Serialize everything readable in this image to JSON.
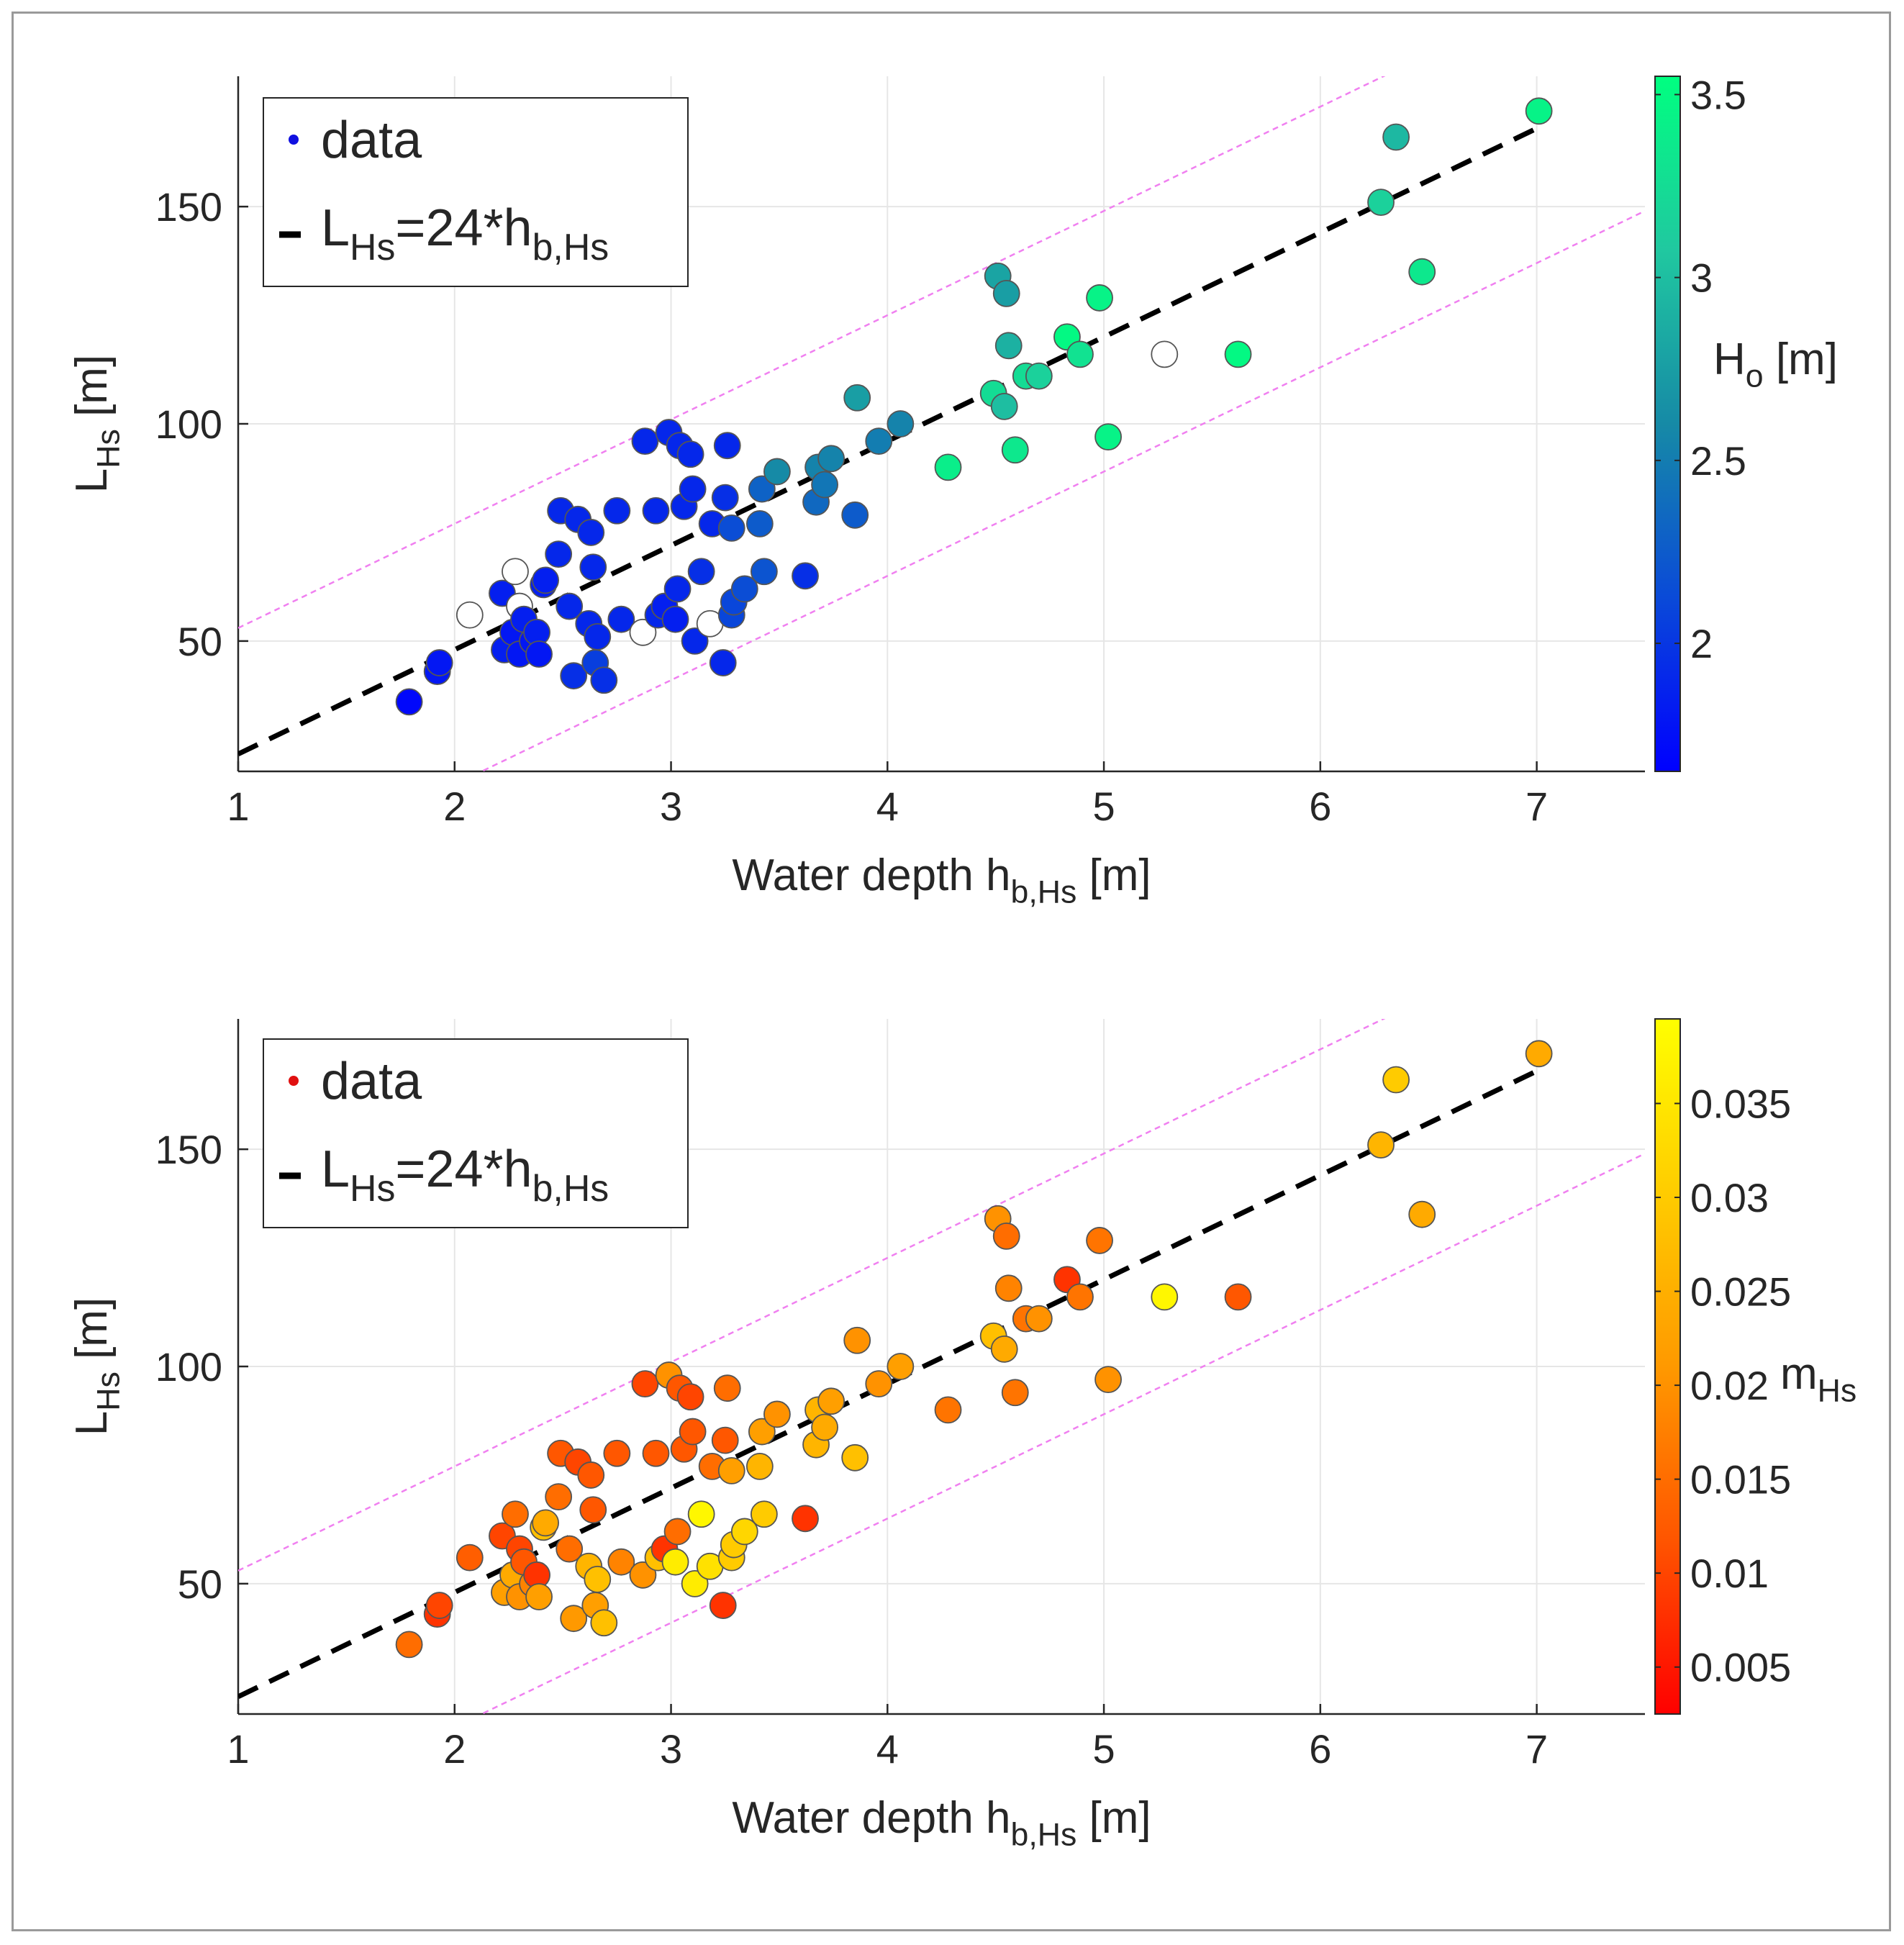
{
  "chart_data": [
    {
      "type": "scatter",
      "xlabel": {
        "main": "Water depth h",
        "sub": "b,Hs",
        "unit": " [m]"
      },
      "ylabel": {
        "main": "L",
        "sub": "Hs",
        "unit": " [m]"
      },
      "xlim": [
        1,
        7.5
      ],
      "ylim": [
        20,
        180
      ],
      "xticks": [
        1,
        2,
        3,
        4,
        5,
        6,
        7
      ],
      "yticks": [
        50,
        100,
        150
      ],
      "grid": true,
      "legend": {
        "placement": "top-left",
        "entries": [
          {
            "label": "data",
            "marker": "dot",
            "color": "#1010e0"
          },
          {
            "label": {
              "main": "L",
              "sub": "Hs",
              "eq": "=24*h",
              "sub2": "b,Hs"
            },
            "marker": "dash",
            "color": "#000000"
          }
        ]
      },
      "fit_line": {
        "slope": 24,
        "intercept": 0,
        "x": [
          1,
          7
        ],
        "color": "#000000",
        "style": "dashed"
      },
      "bound_lines": {
        "slope": 24,
        "offsets": [
          29,
          -31
        ],
        "color": "#f080f0",
        "style": "dotted"
      },
      "colorbar": {
        "label": {
          "main": "H",
          "sub": "o",
          "unit": " [m]"
        },
        "range": [
          1.65,
          3.55
        ],
        "ticks": [
          2,
          2.5,
          3,
          3.5
        ],
        "colormap": [
          "#0000ff",
          "#0a4ad8",
          "#168aa6",
          "#20c8a0",
          "#00ff80"
        ]
      },
      "points": [
        {
          "x": 1.79,
          "y": 36,
          "c": 1.7
        },
        {
          "x": 1.92,
          "y": 43,
          "c": 1.8
        },
        {
          "x": 1.93,
          "y": 45,
          "c": 1.8
        },
        {
          "x": 2.07,
          "y": 56,
          "c": null
        },
        {
          "x": 2.22,
          "y": 61,
          "c": 1.85
        },
        {
          "x": 2.23,
          "y": 48,
          "c": 1.85
        },
        {
          "x": 2.27,
          "y": 52,
          "c": 1.8
        },
        {
          "x": 2.28,
          "y": 66,
          "c": null
        },
        {
          "x": 2.3,
          "y": 58,
          "c": null
        },
        {
          "x": 2.3,
          "y": 47,
          "c": 1.8
        },
        {
          "x": 2.32,
          "y": 55,
          "c": 1.85
        },
        {
          "x": 2.36,
          "y": 50,
          "c": 1.8
        },
        {
          "x": 2.38,
          "y": 52,
          "c": 1.85
        },
        {
          "x": 2.39,
          "y": 47,
          "c": 1.8
        },
        {
          "x": 2.41,
          "y": 63,
          "c": 1.85
        },
        {
          "x": 2.42,
          "y": 64,
          "c": 1.85
        },
        {
          "x": 2.48,
          "y": 70,
          "c": 1.9
        },
        {
          "x": 2.49,
          "y": 80,
          "c": 1.9
        },
        {
          "x": 2.53,
          "y": 58,
          "c": 1.9
        },
        {
          "x": 2.55,
          "y": 42,
          "c": 1.95
        },
        {
          "x": 2.57,
          "y": 78,
          "c": 1.9
        },
        {
          "x": 2.62,
          "y": 54,
          "c": 1.9
        },
        {
          "x": 2.63,
          "y": 75,
          "c": 1.9
        },
        {
          "x": 2.64,
          "y": 67,
          "c": 1.9
        },
        {
          "x": 2.65,
          "y": 45,
          "c": 2.05
        },
        {
          "x": 2.66,
          "y": 51,
          "c": 1.9
        },
        {
          "x": 2.69,
          "y": 41,
          "c": 1.95
        },
        {
          "x": 2.75,
          "y": 80,
          "c": 1.9
        },
        {
          "x": 2.77,
          "y": 55,
          "c": 1.9
        },
        {
          "x": 2.87,
          "y": 52,
          "c": null
        },
        {
          "x": 2.88,
          "y": 96,
          "c": 1.9
        },
        {
          "x": 2.93,
          "y": 80,
          "c": 1.9
        },
        {
          "x": 2.94,
          "y": 56,
          "c": 1.9
        },
        {
          "x": 2.97,
          "y": 58,
          "c": 1.85
        },
        {
          "x": 2.99,
          "y": 98,
          "c": 1.9
        },
        {
          "x": 3.02,
          "y": 55,
          "c": 1.85
        },
        {
          "x": 3.03,
          "y": 62,
          "c": 1.9
        },
        {
          "x": 3.04,
          "y": 95,
          "c": 1.9
        },
        {
          "x": 3.06,
          "y": 81,
          "c": 1.9
        },
        {
          "x": 3.09,
          "y": 93,
          "c": 1.9
        },
        {
          "x": 3.1,
          "y": 85,
          "c": 1.9
        },
        {
          "x": 3.11,
          "y": 50,
          "c": 1.9
        },
        {
          "x": 3.14,
          "y": 66,
          "c": 1.95
        },
        {
          "x": 3.18,
          "y": 54,
          "c": null
        },
        {
          "x": 3.19,
          "y": 77,
          "c": 1.9
        },
        {
          "x": 3.24,
          "y": 45,
          "c": 1.9
        },
        {
          "x": 3.25,
          "y": 83,
          "c": 1.95
        },
        {
          "x": 3.26,
          "y": 95,
          "c": 1.9
        },
        {
          "x": 3.28,
          "y": 76,
          "c": 2.15
        },
        {
          "x": 3.28,
          "y": 56,
          "c": 2.1
        },
        {
          "x": 3.29,
          "y": 59,
          "c": 2.1
        },
        {
          "x": 3.34,
          "y": 62,
          "c": 2.15
        },
        {
          "x": 3.41,
          "y": 77,
          "c": 2.25
        },
        {
          "x": 3.42,
          "y": 85,
          "c": 2.3
        },
        {
          "x": 3.43,
          "y": 66,
          "c": 2.2
        },
        {
          "x": 3.49,
          "y": 89,
          "c": 2.6
        },
        {
          "x": 3.62,
          "y": 65,
          "c": 1.95
        },
        {
          "x": 3.67,
          "y": 82,
          "c": 2.35
        },
        {
          "x": 3.68,
          "y": 90,
          "c": 2.55
        },
        {
          "x": 3.71,
          "y": 86,
          "c": 2.45
        },
        {
          "x": 3.74,
          "y": 92,
          "c": 2.55
        },
        {
          "x": 3.85,
          "y": 79,
          "c": 2.25
        },
        {
          "x": 3.86,
          "y": 106,
          "c": 2.75
        },
        {
          "x": 3.96,
          "y": 96,
          "c": 2.5
        },
        {
          "x": 4.06,
          "y": 100,
          "c": 2.55
        },
        {
          "x": 4.28,
          "y": 90,
          "c": 3.4
        },
        {
          "x": 4.49,
          "y": 107,
          "c": 3.25
        },
        {
          "x": 4.51,
          "y": 134,
          "c": 2.8
        },
        {
          "x": 4.54,
          "y": 104,
          "c": 3.0
        },
        {
          "x": 4.55,
          "y": 130,
          "c": 2.75
        },
        {
          "x": 4.56,
          "y": 118,
          "c": 2.9
        },
        {
          "x": 4.59,
          "y": 94,
          "c": 3.35
        },
        {
          "x": 4.64,
          "y": 111,
          "c": 3.25
        },
        {
          "x": 4.7,
          "y": 111,
          "c": 3.15
        },
        {
          "x": 4.83,
          "y": 120,
          "c": 3.5
        },
        {
          "x": 4.89,
          "y": 116,
          "c": 3.3
        },
        {
          "x": 4.98,
          "y": 129,
          "c": 3.45
        },
        {
          "x": 5.02,
          "y": 97,
          "c": 3.45
        },
        {
          "x": 5.28,
          "y": 116,
          "c": null
        },
        {
          "x": 5.62,
          "y": 116,
          "c": 3.5
        },
        {
          "x": 6.28,
          "y": 151,
          "c": 3.15
        },
        {
          "x": 6.35,
          "y": 166,
          "c": 2.95
        },
        {
          "x": 6.47,
          "y": 135,
          "c": 3.35
        },
        {
          "x": 7.01,
          "y": 172,
          "c": 3.45
        }
      ]
    },
    {
      "type": "scatter",
      "xlabel": {
        "main": "Water depth h",
        "sub": "b,Hs",
        "unit": " [m]"
      },
      "ylabel": {
        "main": "L",
        "sub": "Hs",
        "unit": " [m]"
      },
      "xlim": [
        1,
        7.5
      ],
      "ylim": [
        20,
        180
      ],
      "xticks": [
        1,
        2,
        3,
        4,
        5,
        6,
        7
      ],
      "yticks": [
        50,
        100,
        150
      ],
      "grid": true,
      "legend": {
        "placement": "top-left",
        "entries": [
          {
            "label": "data",
            "marker": "dot",
            "color": "#e01010"
          },
          {
            "label": {
              "main": "L",
              "sub": "Hs",
              "eq": "=24*h",
              "sub2": "b,Hs"
            },
            "marker": "dash",
            "color": "#000000"
          }
        ]
      },
      "fit_line": {
        "slope": 24,
        "intercept": 0,
        "x": [
          1,
          7
        ],
        "color": "#000000",
        "style": "dashed"
      },
      "bound_lines": {
        "slope": 24,
        "offsets": [
          29,
          -31
        ],
        "color": "#f080f0",
        "style": "dotted"
      },
      "colorbar": {
        "label": {
          "main": "m",
          "sub": "Hs",
          "unit": ""
        },
        "range": [
          0.0025,
          0.0395
        ],
        "ticks": [
          0.005,
          0.01,
          0.015,
          0.02,
          0.025,
          0.03,
          0.035
        ],
        "colormap": [
          "#ff0000",
          "#ff5500",
          "#ff9900",
          "#ffcc00",
          "#ffff00"
        ]
      },
      "points": [
        {
          "x": 1.79,
          "y": 36,
          "c": 0.015
        },
        {
          "x": 1.92,
          "y": 43,
          "c": 0.008
        },
        {
          "x": 1.93,
          "y": 45,
          "c": 0.01
        },
        {
          "x": 2.07,
          "y": 56,
          "c": 0.013
        },
        {
          "x": 2.22,
          "y": 61,
          "c": 0.01
        },
        {
          "x": 2.23,
          "y": 48,
          "c": 0.022
        },
        {
          "x": 2.27,
          "y": 52,
          "c": 0.024
        },
        {
          "x": 2.28,
          "y": 66,
          "c": 0.015
        },
        {
          "x": 2.3,
          "y": 58,
          "c": 0.01
        },
        {
          "x": 2.3,
          "y": 47,
          "c": 0.02
        },
        {
          "x": 2.32,
          "y": 55,
          "c": 0.012
        },
        {
          "x": 2.36,
          "y": 50,
          "c": 0.018
        },
        {
          "x": 2.38,
          "y": 52,
          "c": 0.008
        },
        {
          "x": 2.39,
          "y": 47,
          "c": 0.022
        },
        {
          "x": 2.41,
          "y": 63,
          "c": 0.028
        },
        {
          "x": 2.42,
          "y": 64,
          "c": 0.024
        },
        {
          "x": 2.48,
          "y": 70,
          "c": 0.015
        },
        {
          "x": 2.49,
          "y": 80,
          "c": 0.012
        },
        {
          "x": 2.53,
          "y": 58,
          "c": 0.015
        },
        {
          "x": 2.55,
          "y": 42,
          "c": 0.021
        },
        {
          "x": 2.57,
          "y": 78,
          "c": 0.01
        },
        {
          "x": 2.62,
          "y": 54,
          "c": 0.026
        },
        {
          "x": 2.63,
          "y": 75,
          "c": 0.012
        },
        {
          "x": 2.64,
          "y": 67,
          "c": 0.012
        },
        {
          "x": 2.65,
          "y": 45,
          "c": 0.022
        },
        {
          "x": 2.66,
          "y": 51,
          "c": 0.028
        },
        {
          "x": 2.69,
          "y": 41,
          "c": 0.028
        },
        {
          "x": 2.75,
          "y": 80,
          "c": 0.012
        },
        {
          "x": 2.77,
          "y": 55,
          "c": 0.018
        },
        {
          "x": 2.87,
          "y": 52,
          "c": 0.02
        },
        {
          "x": 2.88,
          "y": 96,
          "c": 0.01
        },
        {
          "x": 2.93,
          "y": 80,
          "c": 0.012
        },
        {
          "x": 2.94,
          "y": 56,
          "c": 0.028
        },
        {
          "x": 2.97,
          "y": 58,
          "c": 0.008
        },
        {
          "x": 2.99,
          "y": 98,
          "c": 0.02
        },
        {
          "x": 3.02,
          "y": 55,
          "c": 0.036
        },
        {
          "x": 3.03,
          "y": 62,
          "c": 0.015
        },
        {
          "x": 3.04,
          "y": 95,
          "c": 0.012
        },
        {
          "x": 3.06,
          "y": 81,
          "c": 0.012
        },
        {
          "x": 3.09,
          "y": 93,
          "c": 0.01
        },
        {
          "x": 3.1,
          "y": 85,
          "c": 0.012
        },
        {
          "x": 3.11,
          "y": 50,
          "c": 0.036
        },
        {
          "x": 3.14,
          "y": 66,
          "c": 0.038
        },
        {
          "x": 3.18,
          "y": 54,
          "c": 0.034
        },
        {
          "x": 3.19,
          "y": 77,
          "c": 0.015
        },
        {
          "x": 3.24,
          "y": 45,
          "c": 0.008
        },
        {
          "x": 3.25,
          "y": 83,
          "c": 0.012
        },
        {
          "x": 3.26,
          "y": 95,
          "c": 0.015
        },
        {
          "x": 3.28,
          "y": 76,
          "c": 0.022
        },
        {
          "x": 3.28,
          "y": 56,
          "c": 0.03
        },
        {
          "x": 3.29,
          "y": 59,
          "c": 0.03
        },
        {
          "x": 3.34,
          "y": 62,
          "c": 0.032
        },
        {
          "x": 3.41,
          "y": 77,
          "c": 0.026
        },
        {
          "x": 3.42,
          "y": 85,
          "c": 0.022
        },
        {
          "x": 3.43,
          "y": 66,
          "c": 0.03
        },
        {
          "x": 3.49,
          "y": 89,
          "c": 0.02
        },
        {
          "x": 3.62,
          "y": 65,
          "c": 0.008
        },
        {
          "x": 3.67,
          "y": 82,
          "c": 0.026
        },
        {
          "x": 3.68,
          "y": 90,
          "c": 0.026
        },
        {
          "x": 3.71,
          "y": 86,
          "c": 0.024
        },
        {
          "x": 3.74,
          "y": 92,
          "c": 0.022
        },
        {
          "x": 3.85,
          "y": 79,
          "c": 0.028
        },
        {
          "x": 3.86,
          "y": 106,
          "c": 0.02
        },
        {
          "x": 3.96,
          "y": 96,
          "c": 0.02
        },
        {
          "x": 4.06,
          "y": 100,
          "c": 0.022
        },
        {
          "x": 4.28,
          "y": 90,
          "c": 0.016
        },
        {
          "x": 4.49,
          "y": 107,
          "c": 0.028
        },
        {
          "x": 4.51,
          "y": 134,
          "c": 0.02
        },
        {
          "x": 4.54,
          "y": 104,
          "c": 0.024
        },
        {
          "x": 4.55,
          "y": 130,
          "c": 0.015
        },
        {
          "x": 4.56,
          "y": 118,
          "c": 0.018
        },
        {
          "x": 4.59,
          "y": 94,
          "c": 0.016
        },
        {
          "x": 4.64,
          "y": 111,
          "c": 0.016
        },
        {
          "x": 4.7,
          "y": 111,
          "c": 0.02
        },
        {
          "x": 4.83,
          "y": 120,
          "c": 0.008
        },
        {
          "x": 4.89,
          "y": 116,
          "c": 0.016
        },
        {
          "x": 4.98,
          "y": 129,
          "c": 0.016
        },
        {
          "x": 5.02,
          "y": 97,
          "c": 0.02
        },
        {
          "x": 5.28,
          "y": 116,
          "c": 0.038
        },
        {
          "x": 5.62,
          "y": 116,
          "c": 0.012
        },
        {
          "x": 6.28,
          "y": 151,
          "c": 0.026
        },
        {
          "x": 6.35,
          "y": 166,
          "c": 0.03
        },
        {
          "x": 6.47,
          "y": 135,
          "c": 0.024
        },
        {
          "x": 7.01,
          "y": 172,
          "c": 0.024
        }
      ]
    }
  ]
}
